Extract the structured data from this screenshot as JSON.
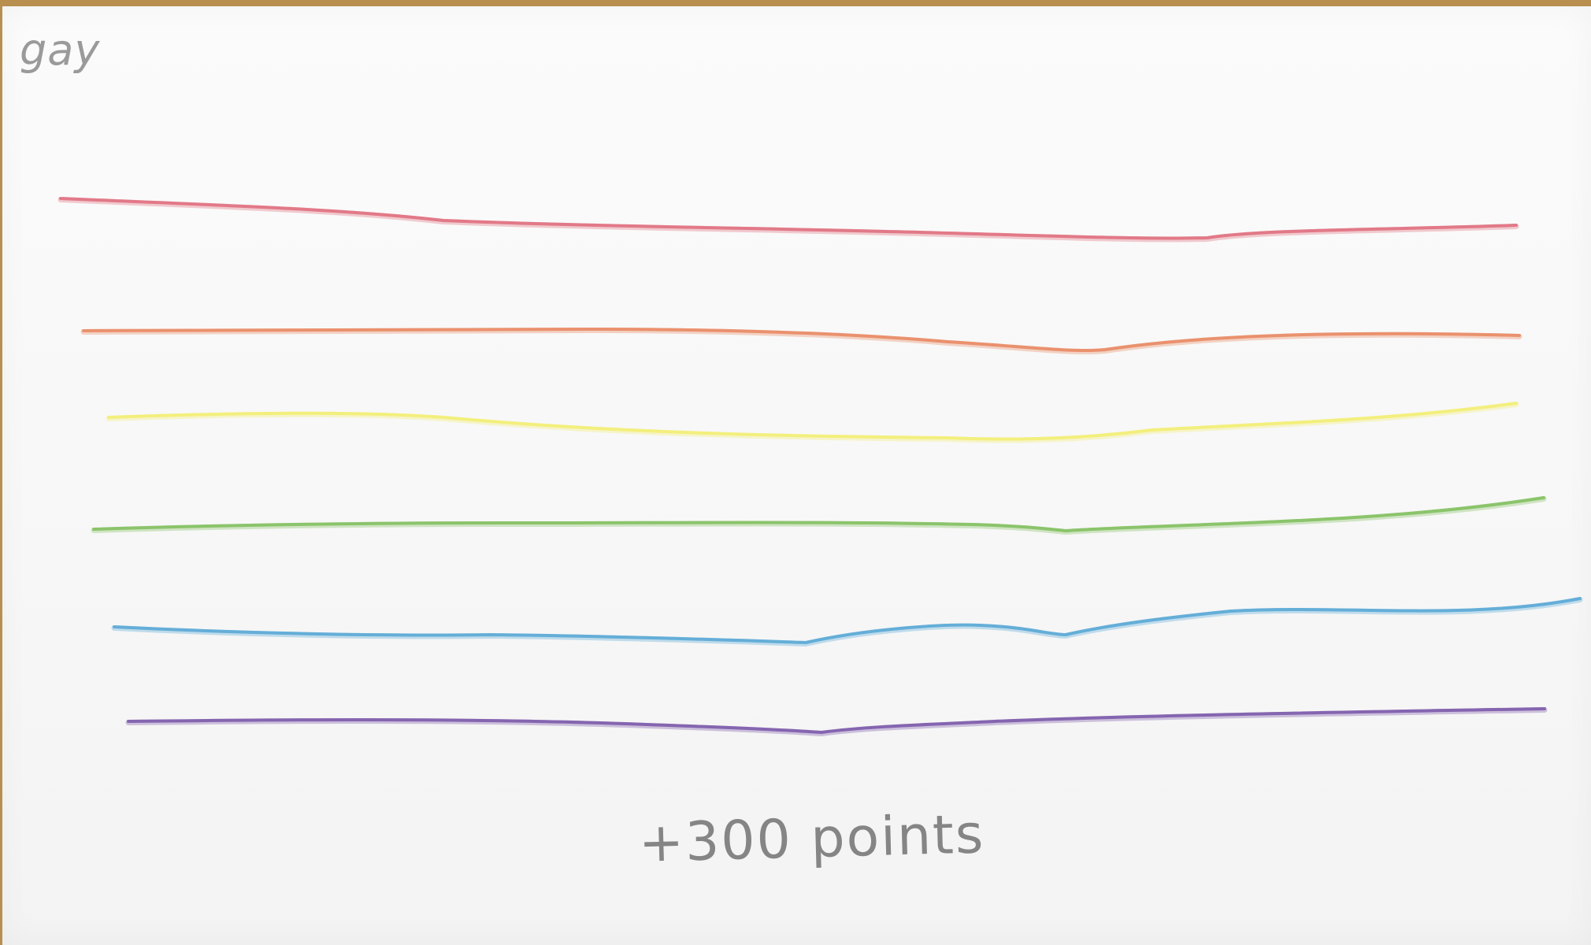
{
  "card": {
    "corner_word": "gay",
    "points_text": "+300 points"
  },
  "stripes": [
    {
      "name": "red-stripe",
      "color": "#e0707f"
    },
    {
      "name": "orange-stripe",
      "color": "#e98a64"
    },
    {
      "name": "yellow-stripe",
      "color": "#f3ee74"
    },
    {
      "name": "green-stripe",
      "color": "#83c062"
    },
    {
      "name": "blue-stripe",
      "color": "#5aa9d6"
    },
    {
      "name": "purple-stripe",
      "color": "#7d5bab"
    }
  ]
}
